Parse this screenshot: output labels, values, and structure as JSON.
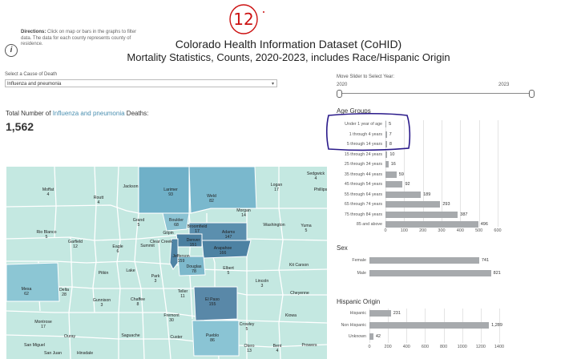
{
  "directions": {
    "lead": "Directions:",
    "text": " Click on map or bars in the graphs to filter data. The data for each county represents county of residence."
  },
  "title": {
    "line1": "Colorado Health Information Dataset (CoHID)",
    "line2": "Mortality Statistics, Counts, 2020-2023, includes Race/Hispanic Origin"
  },
  "cause": {
    "label": "Select a Cause of Death",
    "value": "Influenza and pneumonia"
  },
  "slider": {
    "label": "Move Slider to Select Year:",
    "min": "2020",
    "max": "2023",
    "range": [
      0,
      1
    ]
  },
  "total": {
    "prefix": "Total Number of ",
    "cause": "Influenza and pneumonia",
    "suffix": " Deaths:",
    "value": "1,562"
  },
  "annotation": {
    "text": "12"
  },
  "colors": {
    "map_fill": "#c4e8e1",
    "map_border": "#ffffff",
    "highlight": "#4a8fb0",
    "bar": "#a7aaad",
    "annotation_red": "#cc1111",
    "annotation_blue": "#2a1a8a"
  },
  "chart_data": [
    {
      "type": "bar",
      "title": "Age Groups",
      "orientation": "horizontal",
      "categories": [
        "Under 1 year of age",
        "1 through 4 years",
        "5 through 14 years",
        "15 through 24 years",
        "25 through 34 years",
        "35 through 44 years",
        "45 through 54 years",
        "55 through 64 years",
        "65 through 74 years",
        "75 through 84 years",
        "85 and above"
      ],
      "values": [
        5,
        7,
        8,
        10,
        16,
        59,
        92,
        189,
        293,
        387,
        496
      ],
      "value_labels": [
        "5",
        "7",
        "8",
        "10",
        "16",
        "59",
        "92",
        "189",
        "293",
        "387",
        "496"
      ],
      "xlim": [
        0,
        600
      ],
      "ticks": [
        "0",
        "100",
        "200",
        "300",
        "400",
        "500",
        "600"
      ]
    },
    {
      "type": "bar",
      "title": "Sex",
      "orientation": "horizontal",
      "categories": [
        "Female",
        "Male"
      ],
      "values": [
        741,
        821
      ],
      "value_labels": [
        "741",
        "821"
      ],
      "xlim": [
        0,
        850
      ]
    },
    {
      "type": "bar",
      "title": "Hispanic Origin",
      "orientation": "horizontal",
      "categories": [
        "Hispanic",
        "Non Hispanic",
        "Unknown"
      ],
      "values": [
        231,
        1289,
        42
      ],
      "value_labels": [
        "231",
        "1,289",
        "42"
      ],
      "xlim": [
        0,
        1400
      ],
      "ticks": [
        "0",
        "200",
        "400",
        "600",
        "800",
        "1000",
        "1200",
        "1400"
      ]
    }
  ],
  "map": {
    "counties": [
      {
        "name": "Moffat",
        "value": "4"
      },
      {
        "name": "Routt",
        "value": "4"
      },
      {
        "name": "Jackson",
        "value": ""
      },
      {
        "name": "Larimer",
        "value": "93"
      },
      {
        "name": "Weld",
        "value": "82"
      },
      {
        "name": "Logan",
        "value": "17"
      },
      {
        "name": "Sedgwick",
        "value": "4"
      },
      {
        "name": "Phillips",
        "value": ""
      },
      {
        "name": "Morgan",
        "value": "14"
      },
      {
        "name": "Washington",
        "value": ""
      },
      {
        "name": "Yuma",
        "value": "5"
      },
      {
        "name": "Rio Blanco",
        "value": "5"
      },
      {
        "name": "Grand",
        "value": "5"
      },
      {
        "name": "Boulder",
        "value": "68"
      },
      {
        "name": "Gilpin",
        "value": ""
      },
      {
        "name": "Broomfield",
        "value": "17"
      },
      {
        "name": "Adams",
        "value": "147"
      },
      {
        "name": "Garfield",
        "value": "12"
      },
      {
        "name": "Eagle",
        "value": "6"
      },
      {
        "name": "Summit",
        "value": ""
      },
      {
        "name": "Clear Creek",
        "value": ""
      },
      {
        "name": "Denver",
        "value": "151"
      },
      {
        "name": "Arapahoe",
        "value": "166"
      },
      {
        "name": "Jefferson",
        "value": "159"
      },
      {
        "name": "Douglas",
        "value": "78"
      },
      {
        "name": "Elbert",
        "value": "5"
      },
      {
        "name": "Kit Carson",
        "value": ""
      },
      {
        "name": "Mesa",
        "value": "62"
      },
      {
        "name": "Delta",
        "value": "28"
      },
      {
        "name": "Pitkin",
        "value": ""
      },
      {
        "name": "Lake",
        "value": ""
      },
      {
        "name": "Park",
        "value": "3"
      },
      {
        "name": "Teller",
        "value": "11"
      },
      {
        "name": "El Paso",
        "value": "155"
      },
      {
        "name": "Lincoln",
        "value": "3"
      },
      {
        "name": "Cheyenne",
        "value": ""
      },
      {
        "name": "Gunnison",
        "value": "3"
      },
      {
        "name": "Chaffee",
        "value": "8"
      },
      {
        "name": "Fremont",
        "value": "30"
      },
      {
        "name": "Kiowa",
        "value": ""
      },
      {
        "name": "Montrose",
        "value": "17"
      },
      {
        "name": "Ouray",
        "value": ""
      },
      {
        "name": "Saguache",
        "value": ""
      },
      {
        "name": "Custer",
        "value": ""
      },
      {
        "name": "Pueblo",
        "value": "86"
      },
      {
        "name": "Crowley",
        "value": "5"
      },
      {
        "name": "Otero",
        "value": "13"
      },
      {
        "name": "Bent",
        "value": "4"
      },
      {
        "name": "Prowers",
        "value": ""
      },
      {
        "name": "San Miguel",
        "value": ""
      },
      {
        "name": "San Juan",
        "value": ""
      },
      {
        "name": "Hinsdale",
        "value": ""
      }
    ]
  }
}
